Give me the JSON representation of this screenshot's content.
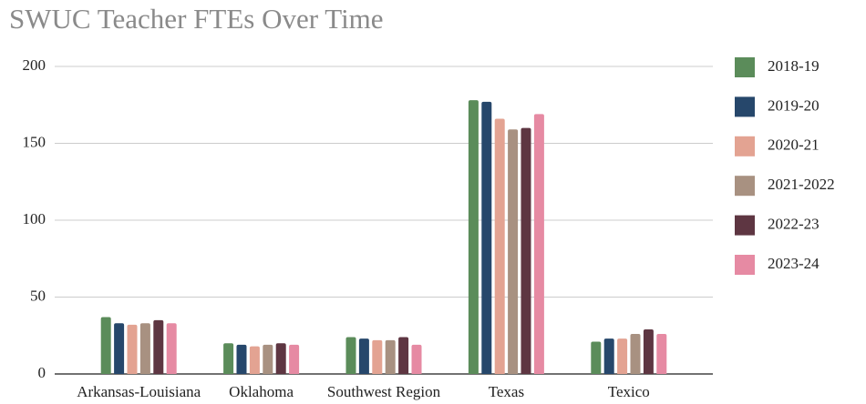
{
  "chart_data": {
    "type": "bar",
    "title": "SWUC Teacher FTEs Over Time",
    "categories": [
      "Arkansas-Louisiana",
      "Oklahoma",
      "Southwest Region",
      "Texas",
      "Texico"
    ],
    "series": [
      {
        "name": "2018-19",
        "color": "#5b8c5a",
        "values": [
          37,
          20,
          24,
          178,
          21
        ]
      },
      {
        "name": "2019-20",
        "color": "#26476b",
        "values": [
          33,
          19,
          23,
          177,
          23
        ]
      },
      {
        "name": "2020-21",
        "color": "#e3a392",
        "values": [
          32,
          18,
          22,
          166,
          23
        ]
      },
      {
        "name": "2021-2022",
        "color": "#a89181",
        "values": [
          33,
          19,
          22,
          159,
          26
        ]
      },
      {
        "name": "2022-23",
        "color": "#5e3642",
        "values": [
          35,
          20,
          24,
          160,
          29
        ]
      },
      {
        "name": "2023-24",
        "color": "#e68aa3",
        "values": [
          33,
          19,
          19,
          169,
          26
        ]
      }
    ],
    "ylim": [
      0,
      200
    ],
    "yticks": [
      0,
      50,
      100,
      150,
      200
    ],
    "grid": true,
    "legend": "right"
  }
}
